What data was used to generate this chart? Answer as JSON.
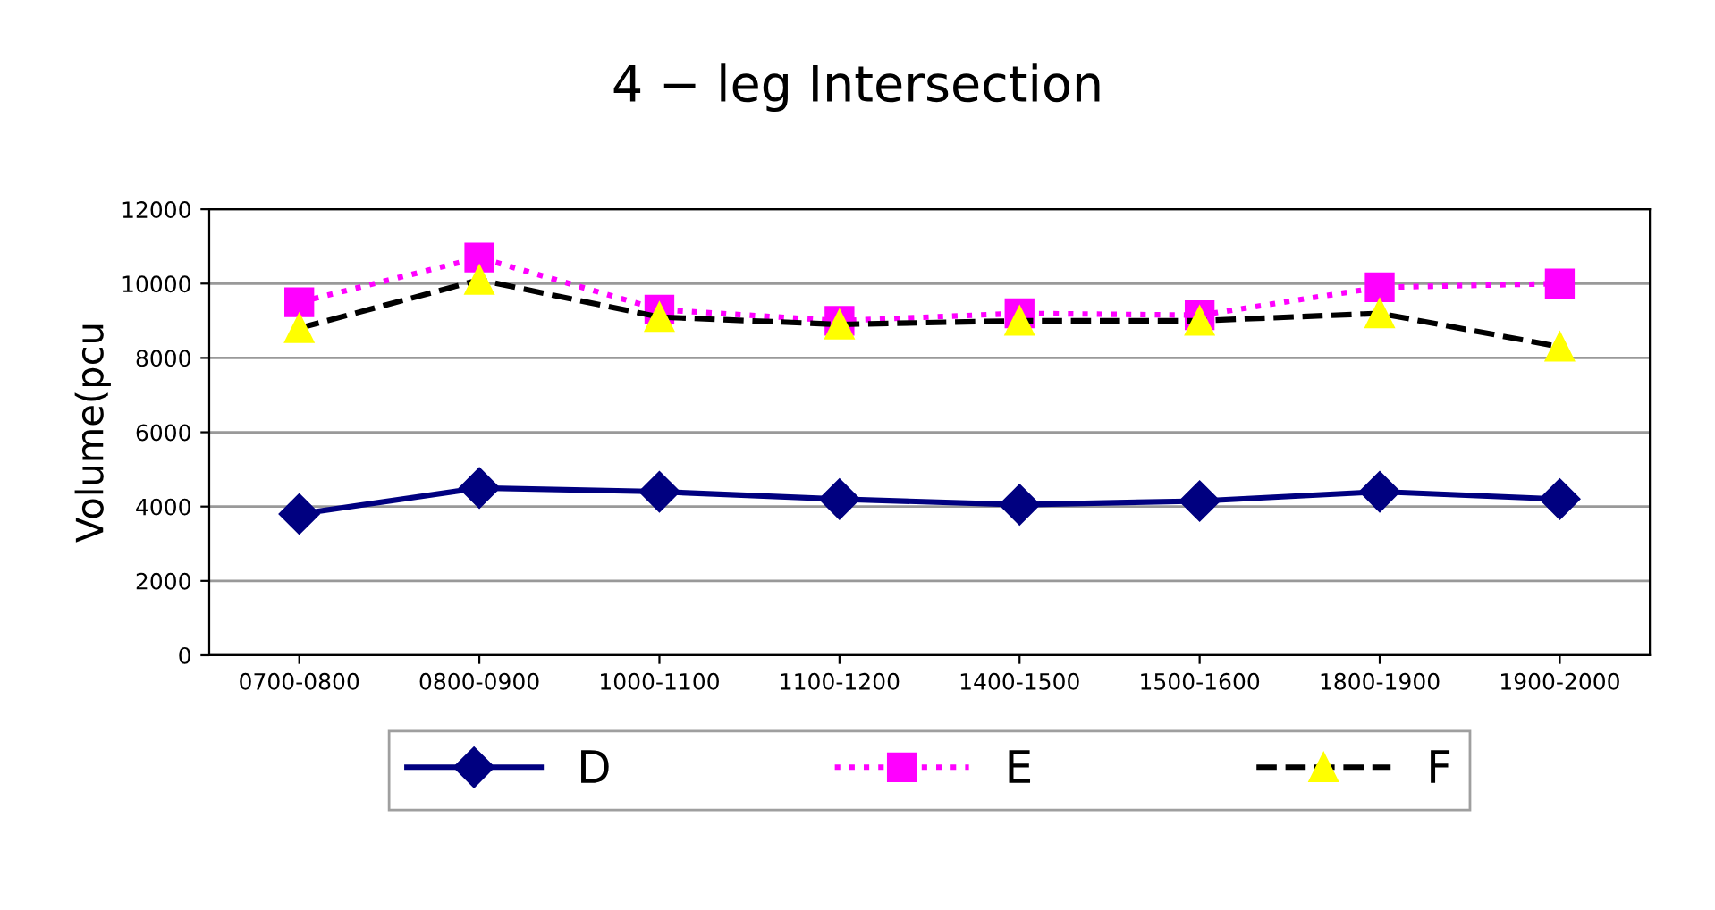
{
  "chart_data": {
    "type": "line",
    "title": "4 − leg Intersection",
    "ylabel": "Volume(pcu",
    "categories": [
      "0700-0800",
      "0800-0900",
      "1000-1100",
      "1100-1200",
      "1400-1500",
      "1500-1600",
      "1800-1900",
      "1900-2000"
    ],
    "series": [
      {
        "name": "D",
        "color": "#000080",
        "marker": "diamond",
        "line_style": "solid",
        "values": [
          3800,
          4500,
          4400,
          4200,
          4050,
          4150,
          4400,
          4200
        ]
      },
      {
        "name": "E",
        "color": "#ff00ff",
        "marker": "square",
        "line_style": "dotted",
        "values": [
          9500,
          10700,
          9300,
          9000,
          9200,
          9150,
          9900,
          10000
        ]
      },
      {
        "name": "F",
        "color": "#ffff00",
        "marker": "triangle",
        "line_style": "dashed",
        "values": [
          8800,
          10100,
          9100,
          8900,
          9000,
          9000,
          9200,
          8300
        ]
      }
    ],
    "ylim": [
      0,
      12000
    ],
    "yticks": [
      0,
      2000,
      4000,
      6000,
      8000,
      10000,
      12000
    ],
    "grid": "y",
    "legend": "bottom"
  }
}
